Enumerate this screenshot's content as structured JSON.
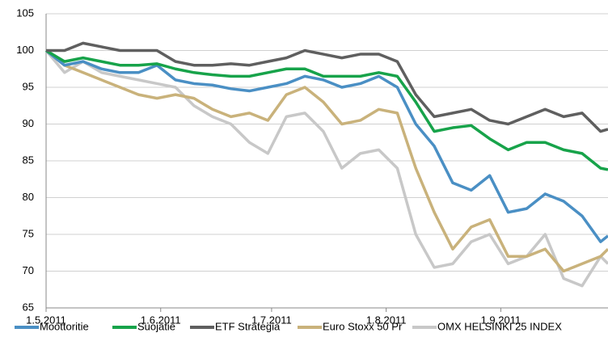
{
  "chart_data": {
    "type": "line",
    "x": [
      "2011-05-01",
      "2011-05-06",
      "2011-05-11",
      "2011-05-16",
      "2011-05-21",
      "2011-05-26",
      "2011-05-31",
      "2011-06-05",
      "2011-06-10",
      "2011-06-15",
      "2011-06-20",
      "2011-06-25",
      "2011-06-30",
      "2011-07-05",
      "2011-07-10",
      "2011-07-15",
      "2011-07-20",
      "2011-07-25",
      "2011-07-30",
      "2011-08-04",
      "2011-08-09",
      "2011-08-14",
      "2011-08-19",
      "2011-08-24",
      "2011-08-29",
      "2011-09-03",
      "2011-09-08",
      "2011-09-13",
      "2011-09-18",
      "2011-09-23",
      "2011-09-28",
      "2011-09-30"
    ],
    "series": [
      {
        "name": "Moottoritie",
        "color": "#4a8fc4",
        "values": [
          100,
          98,
          98.5,
          97.5,
          97,
          97,
          98,
          96,
          95.5,
          95.3,
          94.8,
          94.5,
          95,
          95.5,
          96.5,
          96,
          95,
          95.5,
          96.5,
          95,
          90,
          87,
          82,
          81,
          83,
          78,
          78.5,
          80.5,
          79.5,
          77.5,
          74,
          74.8
        ]
      },
      {
        "name": "Suojatie",
        "color": "#17a34a",
        "values": [
          100,
          98.5,
          99,
          98.5,
          98,
          98,
          98.2,
          97.5,
          97,
          96.7,
          96.5,
          96.5,
          97,
          97.5,
          97.5,
          96.5,
          96.5,
          96.5,
          97,
          96.5,
          93,
          89,
          89.5,
          89.8,
          88,
          86.5,
          87.5,
          87.5,
          86.5,
          86,
          84,
          83.8
        ]
      },
      {
        "name": "ETF Strategia",
        "color": "#5f5f5f",
        "values": [
          100,
          100,
          101,
          100.5,
          100,
          100,
          100,
          98.5,
          98,
          98,
          98.2,
          98,
          98.5,
          99,
          100,
          99.5,
          99,
          99.5,
          99.5,
          98.5,
          94,
          91,
          91.5,
          92,
          90.5,
          90,
          91,
          92,
          91,
          91.5,
          89,
          89.3
        ]
      },
      {
        "name": "Euro Stoxx 50 Pr",
        "color": "#c9b27b",
        "values": [
          100,
          98,
          97,
          96,
          95,
          94,
          93.5,
          94,
          93.5,
          92,
          91,
          91.5,
          90.5,
          94,
          95,
          93,
          90,
          90.5,
          92,
          91.5,
          84,
          78,
          73,
          76,
          77,
          72,
          72,
          73,
          70,
          71,
          72,
          73
        ]
      },
      {
        "name": "OMX HELSINKI 25 INDEX",
        "color": "#c8c8c8",
        "values": [
          100,
          97,
          98.5,
          97,
          96.5,
          96,
          95.5,
          95,
          92.5,
          91,
          90,
          87.5,
          86,
          91,
          91.5,
          89,
          84,
          86,
          86.5,
          84,
          75,
          70.5,
          71,
          74,
          75,
          71,
          72,
          75,
          69,
          68,
          72,
          71
        ]
      }
    ],
    "xlim": [
      "2011-05-01",
      "2011-09-30"
    ],
    "xticks": [
      {
        "value": "2011-05-01",
        "label": "1.5.2011"
      },
      {
        "value": "2011-06-01",
        "label": "1.6.2011"
      },
      {
        "value": "2011-07-01",
        "label": "1.7.2011"
      },
      {
        "value": "2011-08-01",
        "label": "1.8.2011"
      },
      {
        "value": "2011-09-01",
        "label": "1.9.2011"
      }
    ],
    "ylim": [
      65,
      105
    ],
    "yticks": [
      65,
      70,
      75,
      80,
      85,
      90,
      95,
      100,
      105
    ],
    "grid": true,
    "legend": "bottom"
  }
}
